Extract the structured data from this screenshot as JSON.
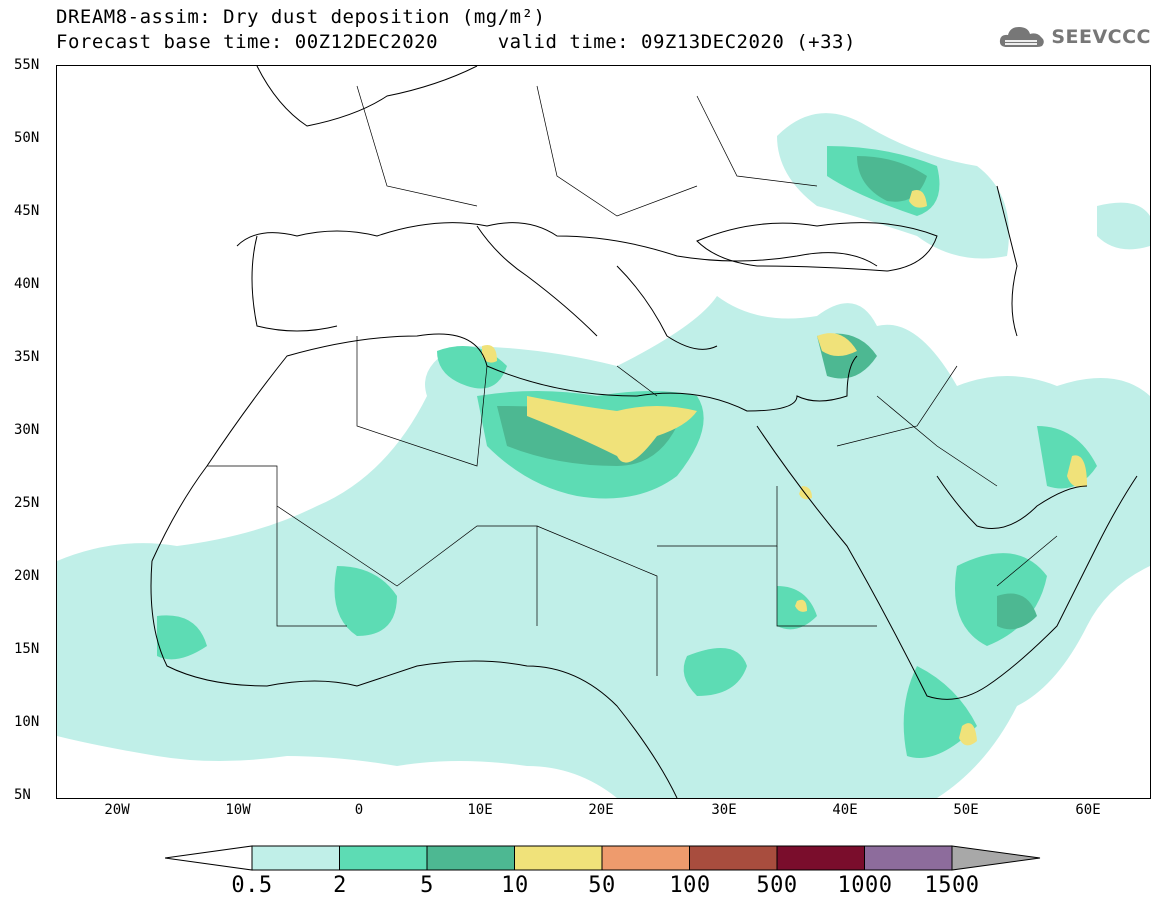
{
  "header": {
    "title_line1": "DREAM8-assim: Dry dust deposition (mg/m²)",
    "title_line2": "Forecast base time: 00Z12DEC2020     valid time: 09Z13DEC2020 (+33)"
  },
  "logo": {
    "text": "SEEVCCC",
    "icon": "cloud-icon",
    "color": "#777777"
  },
  "map": {
    "lat_labels": [
      "55N",
      "50N",
      "45N",
      "40N",
      "35N",
      "30N",
      "25N",
      "20N",
      "15N",
      "10N",
      "5N"
    ],
    "lon_labels": [
      "20W",
      "10W",
      "0",
      "10E",
      "20E",
      "30E",
      "40E",
      "50E",
      "60E"
    ],
    "extent": {
      "lon_min": -25,
      "lon_max": 65,
      "lat_min": 5,
      "lat_max": 55
    }
  },
  "colorbar": {
    "labels": [
      "0.5",
      "2",
      "5",
      "10",
      "50",
      "100",
      "500",
      "1000",
      "1500"
    ],
    "colors": [
      "#ffffff",
      "#c0efe8",
      "#5ddcb4",
      "#4db892",
      "#f0e27a",
      "#ee9b6d",
      "#a84d3e",
      "#7a0d2c",
      "#8d6c9c",
      "#a8a8a8"
    ]
  }
}
